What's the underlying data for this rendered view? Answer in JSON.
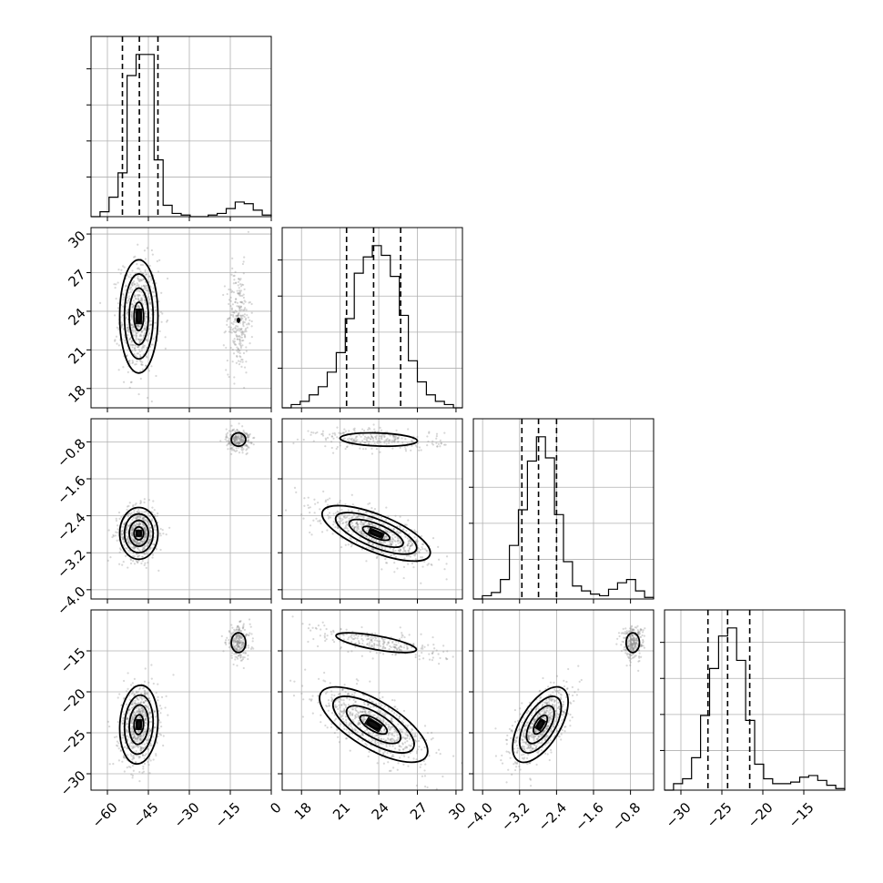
{
  "chart_data": {
    "type": "corner",
    "grid": true,
    "parameters": [
      {
        "range": [
          -66,
          0
        ],
        "ticks": [
          -60,
          -45,
          -30,
          -15,
          0
        ],
        "tick_labels": [
          "−60",
          "−45",
          "−30",
          "−15",
          "0"
        ],
        "quantiles": [
          -54.5,
          -48.3,
          -41.5
        ],
        "hist_bin_edges": [
          -66,
          -62.7,
          -59.4,
          -56.1,
          -52.8,
          -49.5,
          -46.2,
          -42.9,
          -39.6,
          -36.3,
          -33,
          -29.7,
          -26.4,
          -23.1,
          -19.8,
          -16.5,
          -13.2,
          -9.9,
          -6.6,
          -3.3,
          0
        ],
        "hist_counts": [
          0.0,
          0.03,
          0.12,
          0.27,
          0.87,
          1.0,
          1.0,
          0.35,
          0.07,
          0.02,
          0.01,
          0.0,
          0.0,
          0.01,
          0.02,
          0.05,
          0.09,
          0.08,
          0.04,
          0.01
        ]
      },
      {
        "range": [
          16.5,
          30.5
        ],
        "ticks": [
          18,
          21,
          24,
          27,
          30
        ],
        "tick_labels": [
          "18",
          "21",
          "24",
          "27",
          "30"
        ],
        "quantiles": [
          21.5,
          23.6,
          25.7
        ],
        "hist_bin_edges": [
          16.5,
          17.2,
          17.9,
          18.6,
          19.3,
          20.0,
          20.7,
          21.4,
          22.1,
          22.8,
          23.5,
          24.2,
          24.9,
          25.6,
          26.3,
          27.0,
          27.7,
          28.4,
          29.1,
          29.8,
          30.5
        ],
        "hist_counts": [
          0.0,
          0.02,
          0.04,
          0.08,
          0.13,
          0.22,
          0.34,
          0.55,
          0.83,
          0.93,
          1.0,
          0.94,
          0.81,
          0.57,
          0.29,
          0.16,
          0.08,
          0.04,
          0.02,
          0.0
        ]
      },
      {
        "range": [
          -4.2,
          -0.3
        ],
        "ticks": [
          -4.0,
          -3.2,
          -2.4,
          -1.6,
          -0.8
        ],
        "tick_labels": [
          "−4.0",
          "−3.2",
          "−2.4",
          "−1.6",
          "−0.8"
        ],
        "quantiles": [
          -3.15,
          -2.79,
          -2.4
        ],
        "hist_bin_edges": [
          -4.2,
          -4.005,
          -3.81,
          -3.615,
          -3.42,
          -3.225,
          -3.03,
          -2.835,
          -2.64,
          -2.445,
          -2.25,
          -2.055,
          -1.86,
          -1.665,
          -1.47,
          -1.275,
          -1.08,
          -0.885,
          -0.69,
          -0.495,
          -0.3
        ],
        "hist_counts": [
          0.0,
          0.02,
          0.04,
          0.12,
          0.33,
          0.55,
          0.85,
          1.0,
          0.87,
          0.52,
          0.23,
          0.08,
          0.05,
          0.03,
          0.02,
          0.06,
          0.1,
          0.12,
          0.05,
          0.01
        ]
      },
      {
        "range": [
          -32,
          -10
        ],
        "ticks": [
          -30,
          -25,
          -20,
          -15
        ],
        "tick_labels": [
          "−30",
          "−25",
          "−20",
          "−15"
        ],
        "quantiles": [
          -26.7,
          -24.3,
          -21.6
        ],
        "hist_bin_edges": [
          -32,
          -30.9,
          -29.8,
          -28.7,
          -27.6,
          -26.5,
          -25.4,
          -24.3,
          -23.2,
          -22.1,
          -21.0,
          -19.9,
          -18.8,
          -17.7,
          -16.6,
          -15.5,
          -14.4,
          -13.3,
          -12.2,
          -11.1,
          -10
        ],
        "hist_counts": [
          0.0,
          0.04,
          0.07,
          0.2,
          0.46,
          0.75,
          0.95,
          1.0,
          0.8,
          0.43,
          0.16,
          0.07,
          0.04,
          0.04,
          0.05,
          0.08,
          0.09,
          0.06,
          0.03,
          0.01
        ]
      }
    ],
    "pair_modes": [
      {
        "row": 1,
        "col": 0,
        "modes": [
          {
            "center": [
              -48.5,
              23.6
            ],
            "sd": [
              3.5,
              2.2
            ],
            "corr": 0.0,
            "contours": true,
            "dark": true
          },
          {
            "center": [
              -12.0,
              23.3
            ],
            "sd": [
              2.2,
              2.0
            ],
            "corr": 0.0,
            "contours": false
          }
        ]
      },
      {
        "row": 2,
        "col": 0,
        "modes": [
          {
            "center": [
              -48.5,
              -2.78
            ],
            "sd": [
              3.5,
              0.28
            ],
            "corr": 0.0,
            "contours": true,
            "dark": true
          },
          {
            "center": [
              -12.0,
              -0.75
            ],
            "sd": [
              2.2,
              0.12
            ],
            "corr": 0.0,
            "contours": true,
            "small": true
          }
        ]
      },
      {
        "row": 3,
        "col": 0,
        "modes": [
          {
            "center": [
              -48.5,
              -24.0
            ],
            "sd": [
              3.5,
              2.4
            ],
            "corr": 0.1,
            "contours": true,
            "dark": true
          },
          {
            "center": [
              -12.0,
              -14.0
            ],
            "sd": [
              2.2,
              1.0
            ],
            "corr": 0.0,
            "contours": true,
            "small": true
          }
        ]
      },
      {
        "row": 2,
        "col": 1,
        "modes": [
          {
            "center": [
              23.8,
              -2.78
            ],
            "sd": [
              2.1,
              0.3
            ],
            "corr": -0.7,
            "contours": true,
            "dark": true
          },
          {
            "center": [
              24.0,
              -0.75
            ],
            "sd": [
              2.5,
              0.12
            ],
            "corr": -0.2,
            "contours": true,
            "small": true
          }
        ]
      },
      {
        "row": 3,
        "col": 1,
        "modes": [
          {
            "center": [
              23.6,
              -24.0
            ],
            "sd": [
              2.1,
              2.3
            ],
            "corr": -0.7,
            "contours": true,
            "dark": true
          },
          {
            "center": [
              23.8,
              -14.0
            ],
            "sd": [
              2.6,
              1.0
            ],
            "corr": -0.7,
            "contours": true,
            "small": true
          }
        ]
      },
      {
        "row": 3,
        "col": 2,
        "modes": [
          {
            "center": [
              -2.75,
              -24.0
            ],
            "sd": [
              0.3,
              2.3
            ],
            "corr": 0.6,
            "contours": true,
            "dark": true
          },
          {
            "center": [
              -0.75,
              -14.0
            ],
            "sd": [
              0.12,
              1.0
            ],
            "corr": 0.0,
            "contours": true,
            "small": true
          }
        ]
      }
    ]
  }
}
